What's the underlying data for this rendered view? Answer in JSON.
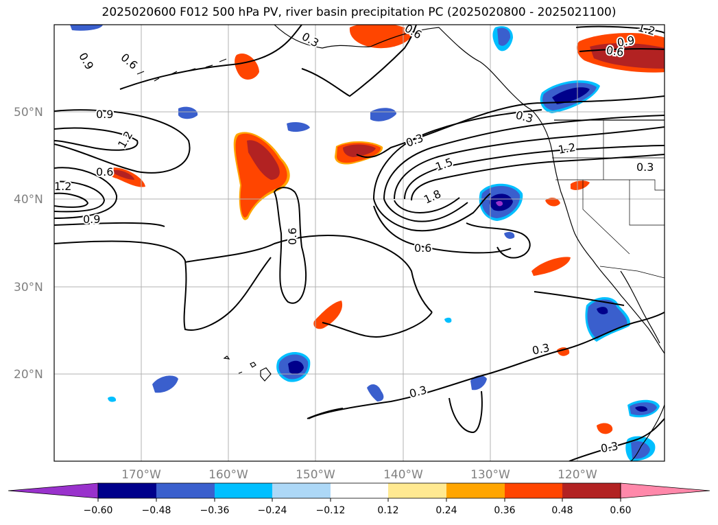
{
  "title": "2025020600 F012 500 hPa PV, river basin precipitation PC (2025020800 - 2025021100)",
  "map": {
    "projection": "PlateCarree",
    "extent": {
      "lon_min": -180,
      "lon_max": -110,
      "lat_min": 10,
      "lat_max": 60
    },
    "lat_labels": [
      "20°N",
      "30°N",
      "40°N",
      "50°N"
    ],
    "lon_labels": [
      "170°W",
      "160°W",
      "150°W",
      "140°W",
      "130°W",
      "120°W"
    ],
    "gridlines": true,
    "coastlines": true,
    "state_borders": true
  },
  "contours": {
    "field": "500 hPa PV",
    "color": "#000000",
    "labels": [
      "0.9",
      "0.6",
      "0.3",
      "0.9",
      "1.2",
      "0.6",
      "1.2",
      "0.9",
      "0.6",
      "0.3",
      "1.5",
      "1.8",
      "0.6",
      "0.3",
      "1.2",
      "0.3",
      "0.3",
      "0.3",
      "0.3",
      "0.9",
      "0.6",
      "1.2",
      "0.6"
    ]
  },
  "colorbar": {
    "ticks": [
      "−0.60",
      "−0.48",
      "−0.36",
      "−0.24",
      "−0.12",
      "0.12",
      "0.24",
      "0.36",
      "0.48",
      "0.60"
    ],
    "colors": [
      "#9932cc",
      "#00008b",
      "#3a5fcd",
      "#00bfff",
      "#add8f7",
      "#ffffff",
      "#ffe991",
      "#ffa500",
      "#ff4500",
      "#b22222",
      "#ff88aa"
    ],
    "extend": "both"
  }
}
